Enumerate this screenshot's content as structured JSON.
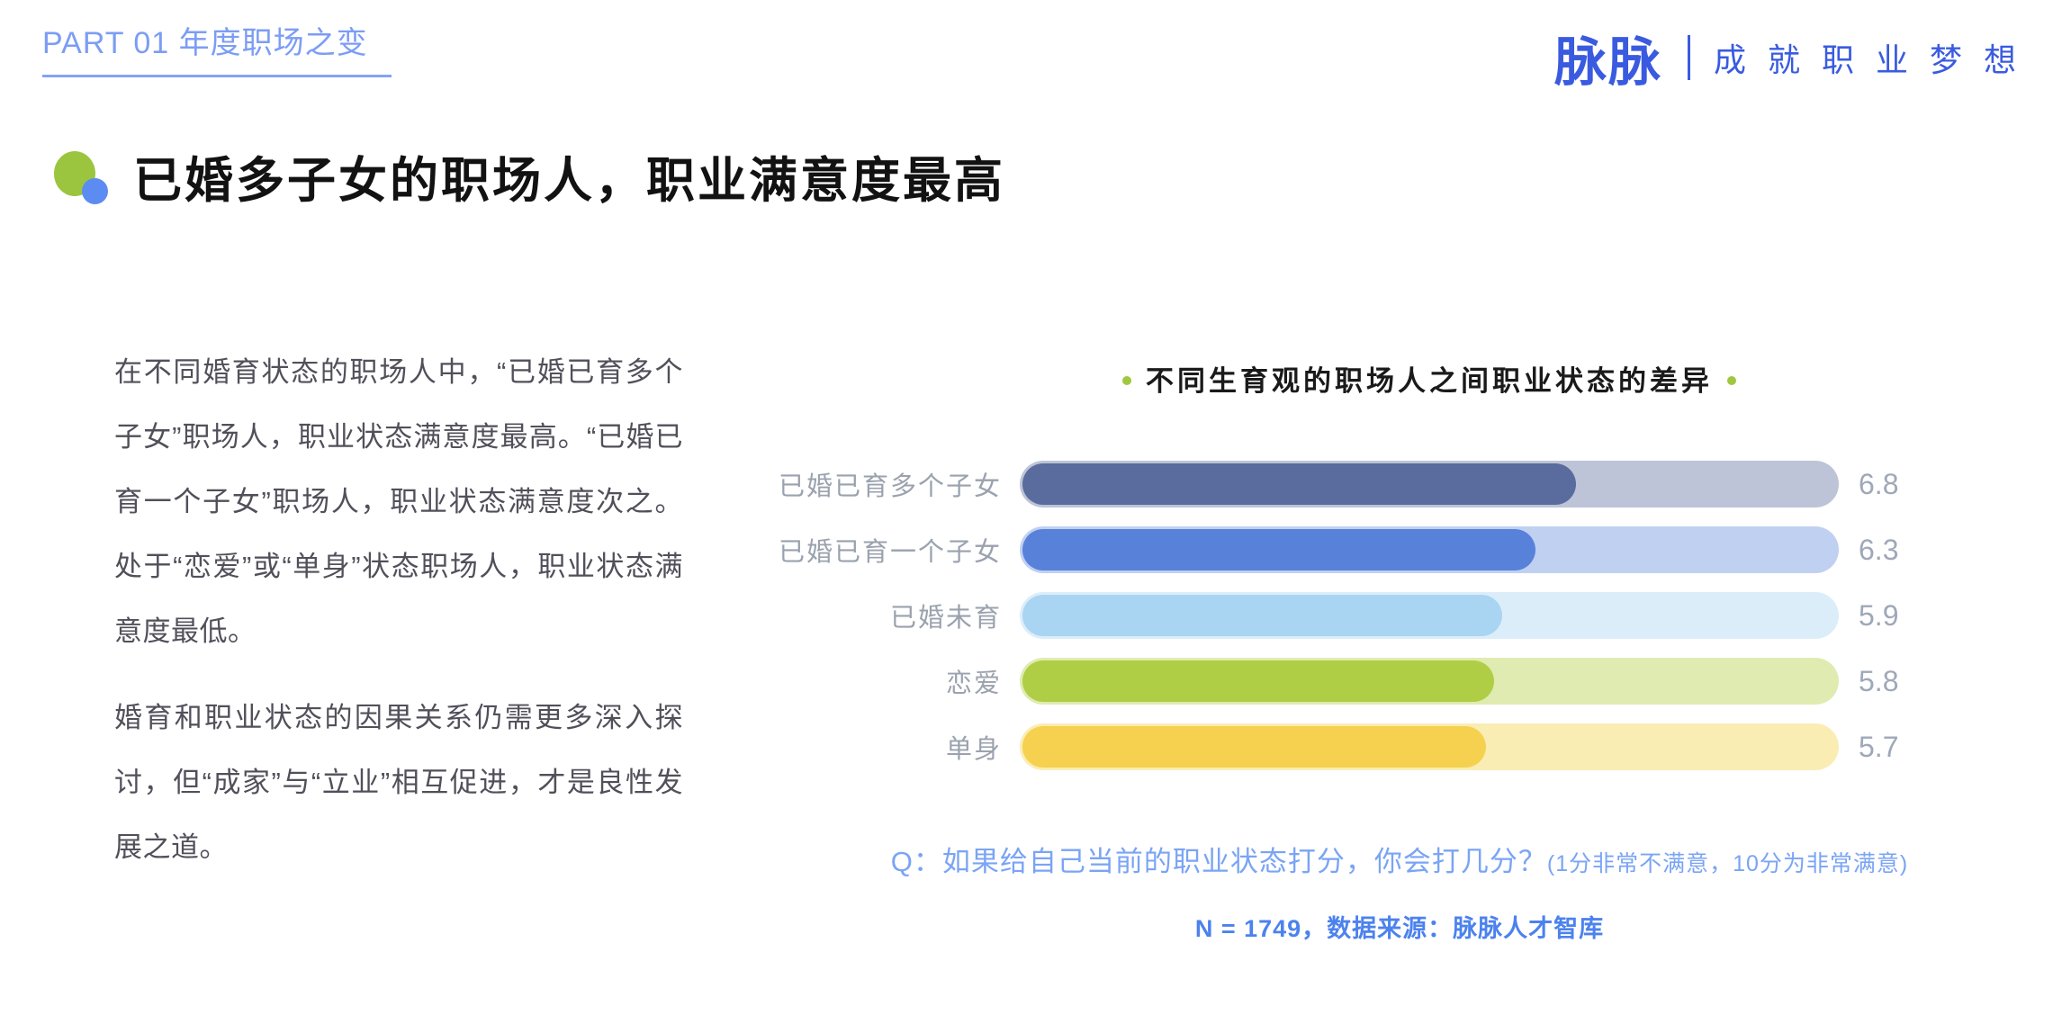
{
  "header": {
    "part_label": "PART 01 年度职场之变",
    "logo_text": "脉脉",
    "logo_tagline": "成就职业梦想"
  },
  "section": {
    "title": "已婚多子女的职场人，职业满意度最高"
  },
  "article": {
    "paragraph1": "在不同婚育状态的职场人中，“已婚已育多个子女”职场人，职业状态满意度最高。“已婚已育一个子女”职场人，职业状态满意度次之。处于“恋爱”或“单身”状态职场人，职业状态满意度最低。",
    "paragraph2": "婚育和职业状态的因果关系仍需更多深入探讨，但“成家”与“立业”相互促进，才是良性发展之道。"
  },
  "chart_data": {
    "type": "bar",
    "orientation": "horizontal",
    "title": "不同生育观的职场人之间职业状态的差异",
    "categories": [
      "已婚已育多个子女",
      "已婚已育一个子女",
      "已婚未育",
      "恋爱",
      "单身"
    ],
    "values": [
      6.8,
      6.3,
      5.9,
      5.8,
      5.7
    ],
    "xlim": [
      0,
      10
    ],
    "grid": false,
    "legend": "none",
    "bar_colors": [
      "#5A6C9E",
      "#5881DA",
      "#A9D5F3",
      "#AFCE45",
      "#F5D14F"
    ],
    "track_colors": [
      "#BDC4D7",
      "#C0D0F1",
      "#DCEDFA",
      "#E0EBB2",
      "#FAEDB4"
    ],
    "question": "Q：如果给自己当前的职业状态打分，你会打几分？",
    "question_note": "(1分非常不满意，10分为非常满意)",
    "source": "N = 1749，数据来源：脉脉人才智库"
  },
  "colors": {
    "brand_blue": "#3A5BE0",
    "part_header_blue": "#7C9DF4",
    "question_blue": "#7AA4F5",
    "source_blue": "#4C82EE",
    "title_black": "#121212",
    "body_gray": "#51505A",
    "label_gray": "#9AA2AE",
    "value_gray": "#9FA8B8",
    "bullet_green": "#9BC53E",
    "bullet_blue": "#5C8BF2",
    "title_dot_green": "#9FC83F"
  }
}
